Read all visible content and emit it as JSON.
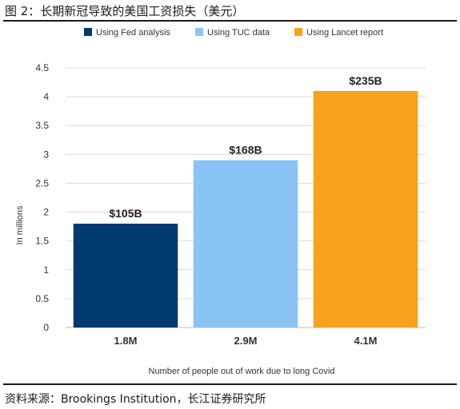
{
  "figure": {
    "title": "图 2：长期新冠导致的美国工资损失（美元）",
    "source": "资料来源：Brookings Institution，长江证券研究所"
  },
  "chart_data": {
    "type": "bar",
    "categories": [
      "1.8M",
      "2.9M",
      "4.1M"
    ],
    "values": [
      1.8,
      2.9,
      4.1
    ],
    "data_labels": [
      "$105B",
      "$168B",
      "$235B"
    ],
    "legend": [
      "Using Fed analysis",
      "Using TUC data",
      "Using Lancet report"
    ],
    "colors": [
      "#003a70",
      "#8ac4f5",
      "#f7a11c"
    ],
    "xlabel": "Number of people out of work due to long Covid",
    "ylabel": "In millions",
    "ylim": [
      0,
      4.5
    ],
    "yticks": [
      0,
      0.5,
      1,
      1.5,
      2,
      2.5,
      3,
      3.5,
      4,
      4.5
    ],
    "ytick_labels": [
      "0",
      "0.5",
      "1",
      "1.5",
      "2",
      "2.5",
      "3",
      "3.5",
      "4",
      "4.5"
    ],
    "grid": true,
    "legend_position": "top"
  }
}
